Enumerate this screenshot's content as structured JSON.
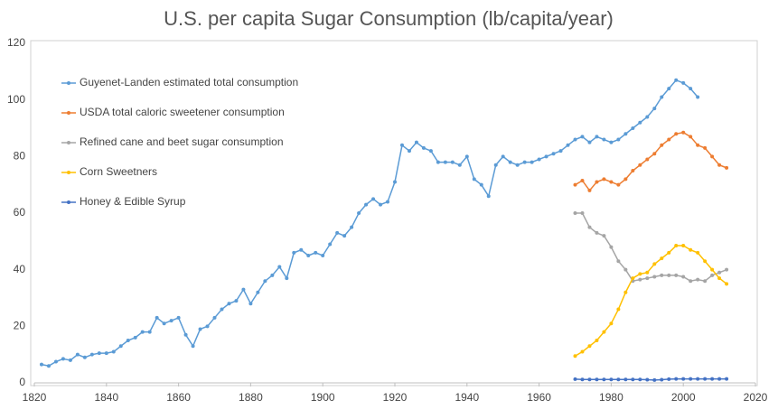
{
  "chart_data": {
    "type": "line",
    "title": "U.S. per capita Sugar Consumption (lb/capita/year)",
    "xlim": [
      1820,
      2020
    ],
    "xticks": [
      1820,
      1840,
      1860,
      1880,
      1900,
      1920,
      1940,
      1960,
      1980,
      2000,
      2020
    ],
    "ylim": [
      0,
      120
    ],
    "yticks": [
      0,
      20,
      40,
      60,
      80,
      100,
      120
    ],
    "grid": false,
    "legend": "upper-left",
    "series": [
      {
        "name": "Guyenet-Landen estimated total consumption",
        "color": "#5b9bd5",
        "x": [
          1822,
          1824,
          1826,
          1828,
          1830,
          1832,
          1834,
          1836,
          1838,
          1840,
          1842,
          1844,
          1846,
          1848,
          1850,
          1852,
          1854,
          1856,
          1858,
          1860,
          1862,
          1864,
          1866,
          1868,
          1870,
          1872,
          1874,
          1876,
          1878,
          1880,
          1882,
          1884,
          1886,
          1888,
          1890,
          1892,
          1894,
          1896,
          1898,
          1900,
          1902,
          1904,
          1906,
          1908,
          1910,
          1912,
          1914,
          1916,
          1918,
          1920,
          1922,
          1924,
          1926,
          1928,
          1930,
          1932,
          1934,
          1936,
          1938,
          1940,
          1942,
          1944,
          1946,
          1948,
          1950,
          1952,
          1954,
          1956,
          1958,
          1960,
          1962,
          1964,
          1966,
          1968,
          1970,
          1972,
          1974,
          1976,
          1978,
          1980,
          1982,
          1984,
          1986,
          1988,
          1990,
          1992,
          1994,
          1996,
          1998,
          2000,
          2002,
          2004
        ],
        "values": [
          6.5,
          6,
          7.5,
          8.5,
          8,
          10,
          9,
          10,
          10.5,
          10.5,
          11,
          13,
          15,
          16,
          18,
          18,
          23,
          21,
          22,
          23,
          17,
          13,
          19,
          20,
          23,
          26,
          28,
          29,
          33,
          28,
          32,
          36,
          38,
          41,
          37,
          46,
          47,
          45,
          46,
          45,
          49,
          53,
          52,
          55,
          60,
          63,
          65,
          63,
          64,
          71,
          84,
          82,
          85,
          83,
          82,
          78,
          78,
          78,
          77,
          80,
          72,
          70,
          66,
          77,
          80,
          78,
          77,
          78,
          78,
          79,
          80,
          81,
          82,
          84,
          86,
          87,
          85,
          87,
          86,
          85,
          86,
          88,
          90,
          92,
          94,
          97,
          101,
          104,
          107,
          106,
          104,
          101
        ]
      },
      {
        "name": "USDA total caloric sweetener consumption",
        "color": "#ed7d31",
        "x": [
          1970,
          1972,
          1974,
          1976,
          1978,
          1980,
          1982,
          1984,
          1986,
          1988,
          1990,
          1992,
          1994,
          1996,
          1998,
          2000,
          2002,
          2004,
          2006,
          2008,
          2010,
          2012
        ],
        "values": [
          70,
          71.5,
          68,
          71,
          72,
          71,
          70,
          72,
          75,
          77,
          79,
          81,
          84,
          86,
          88,
          88.5,
          87,
          84,
          83,
          80,
          77,
          76
        ]
      },
      {
        "name": "Refined cane and beet sugar consumption",
        "color": "#a5a5a5",
        "x": [
          1970,
          1972,
          1974,
          1976,
          1978,
          1980,
          1982,
          1984,
          1986,
          1988,
          1990,
          1992,
          1994,
          1996,
          1998,
          2000,
          2002,
          2004,
          2006,
          2008,
          2010,
          2012
        ],
        "values": [
          60,
          60,
          55,
          53,
          52,
          48,
          43,
          40,
          36,
          36.5,
          37,
          37.5,
          38,
          38,
          38,
          37.5,
          36,
          36.5,
          36,
          38,
          39,
          40
        ]
      },
      {
        "name": "Corn Sweetners",
        "color": "#ffc000",
        "x": [
          1970,
          1972,
          1974,
          1976,
          1978,
          1980,
          1982,
          1984,
          1986,
          1988,
          1990,
          1992,
          1994,
          1996,
          1998,
          2000,
          2002,
          2004,
          2006,
          2008,
          2010,
          2012
        ],
        "values": [
          9.5,
          11,
          13,
          15,
          18,
          21,
          26,
          32,
          37,
          38.5,
          39,
          42,
          44,
          46,
          48.5,
          48.5,
          47,
          46,
          43,
          40,
          37,
          35
        ]
      },
      {
        "name": "Honey & Edible Syrup",
        "color": "#4472c4",
        "x": [
          1970,
          1972,
          1974,
          1976,
          1978,
          1980,
          1982,
          1984,
          1986,
          1988,
          1990,
          1992,
          1994,
          1996,
          1998,
          2000,
          2002,
          2004,
          2006,
          2008,
          2010,
          2012
        ],
        "values": [
          1.3,
          1.2,
          1.2,
          1.2,
          1.2,
          1.2,
          1.2,
          1.2,
          1.2,
          1.2,
          1.1,
          1,
          1.1,
          1.3,
          1.4,
          1.4,
          1.4,
          1.4,
          1.4,
          1.4,
          1.4,
          1.4
        ]
      }
    ]
  }
}
